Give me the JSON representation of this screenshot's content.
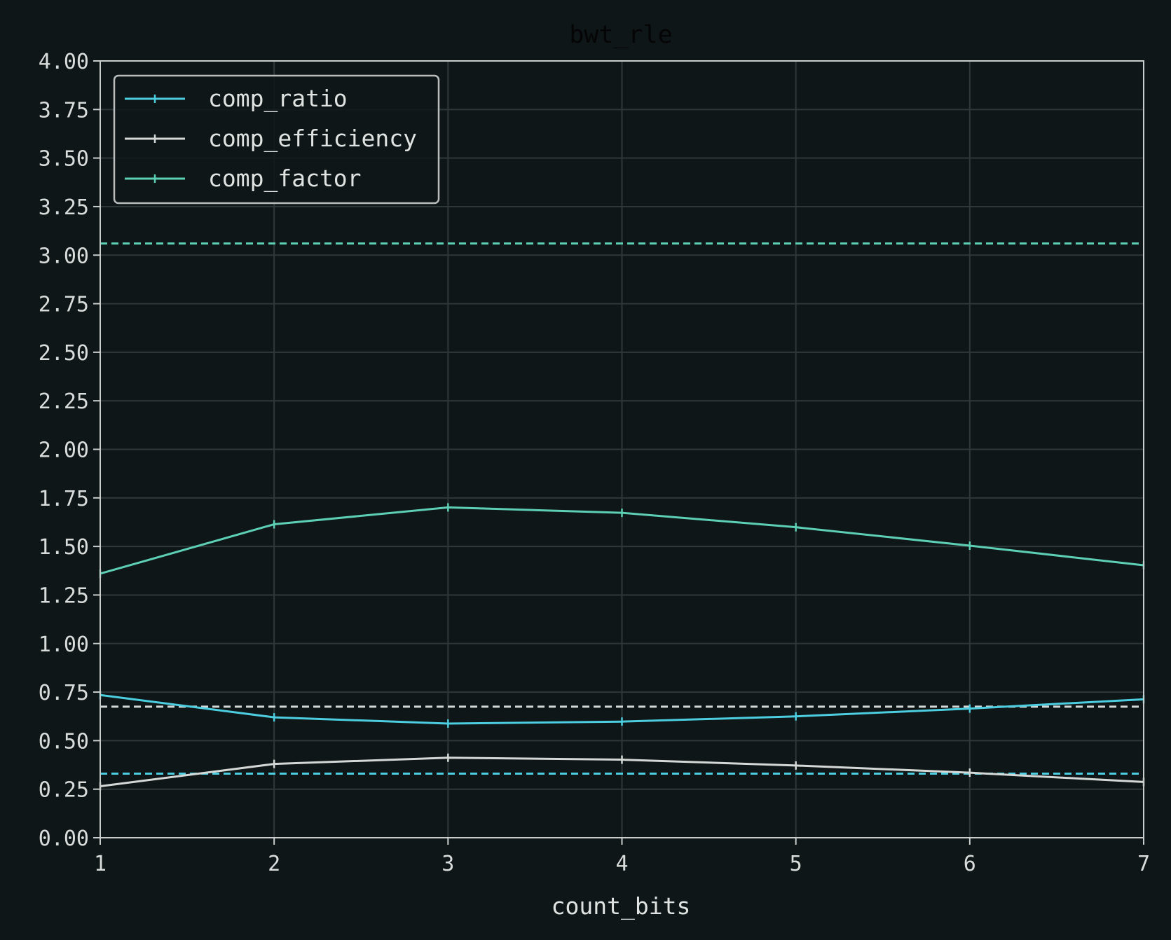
{
  "chart_data": {
    "type": "line",
    "title": "bwt_rle",
    "xlabel": "count_bits",
    "ylabel": "",
    "xlim": [
      1,
      7
    ],
    "ylim": [
      0,
      4
    ],
    "grid": true,
    "legend_placement": "top-left",
    "x": [
      1,
      2,
      3,
      4,
      5,
      6,
      7
    ],
    "xticks": [
      "1",
      "2",
      "3",
      "4",
      "5",
      "6",
      "7"
    ],
    "yticks": [
      "0.00",
      "0.25",
      "0.50",
      "0.75",
      "1.00",
      "1.25",
      "1.50",
      "1.75",
      "2.00",
      "2.25",
      "2.50",
      "2.75",
      "3.00",
      "3.25",
      "3.50",
      "3.75",
      "4.00"
    ],
    "series": [
      {
        "name": "comp_ratio",
        "color": "#4ccde0",
        "values": [
          0.735,
          0.62,
          0.588,
          0.598,
          0.625,
          0.665,
          0.713
        ]
      },
      {
        "name": "comp_efficiency",
        "color": "#d4d8d6",
        "values": [
          0.265,
          0.38,
          0.412,
          0.402,
          0.372,
          0.335,
          0.287
        ]
      },
      {
        "name": "comp_factor",
        "color": "#5ccfb5",
        "values": [
          1.36,
          1.614,
          1.701,
          1.673,
          1.599,
          1.504,
          1.403
        ]
      }
    ],
    "reference_lines": [
      {
        "series": "comp_factor",
        "y": 3.06,
        "color": "#5ccfb5",
        "style": "dashed"
      },
      {
        "series": "comp_efficiency",
        "y": 0.675,
        "color": "#d4d8d6",
        "style": "dashed"
      },
      {
        "series": "comp_ratio",
        "y": 0.33,
        "color": "#4ccde0",
        "style": "dashed"
      }
    ]
  }
}
